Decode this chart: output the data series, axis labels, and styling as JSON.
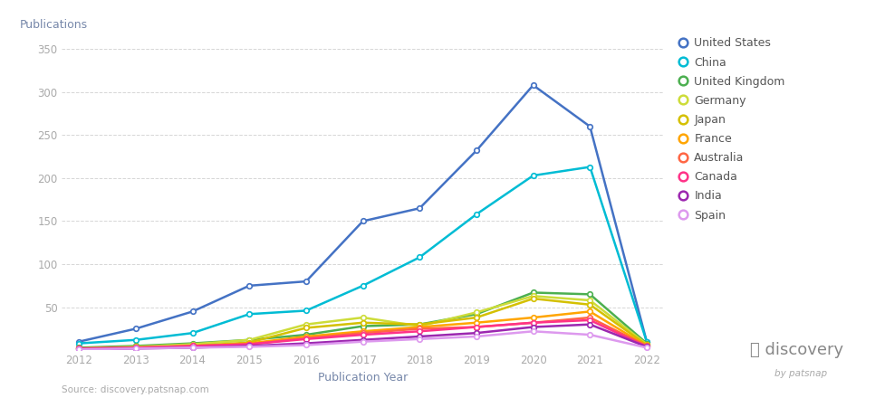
{
  "years": [
    2012,
    2013,
    2014,
    2015,
    2016,
    2017,
    2018,
    2019,
    2020,
    2021,
    2022
  ],
  "series": {
    "United States": {
      "values": [
        10,
        25,
        45,
        75,
        80,
        150,
        165,
        232,
        308,
        260,
        10
      ],
      "color": "#4472C4"
    },
    "China": {
      "values": [
        8,
        12,
        20,
        42,
        46,
        75,
        108,
        158,
        203,
        213,
        10
      ],
      "color": "#00BCD4"
    },
    "United Kingdom": {
      "values": [
        3,
        5,
        8,
        12,
        18,
        28,
        30,
        42,
        67,
        65,
        8
      ],
      "color": "#4CAF50"
    },
    "Germany": {
      "values": [
        2,
        4,
        7,
        12,
        30,
        38,
        28,
        44,
        63,
        58,
        7
      ],
      "color": "#CDDC39"
    },
    "Japan": {
      "values": [
        2,
        3,
        5,
        9,
        26,
        32,
        30,
        38,
        60,
        53,
        6
      ],
      "color": "#D4C000"
    },
    "France": {
      "values": [
        2,
        3,
        5,
        8,
        16,
        22,
        27,
        32,
        38,
        45,
        5
      ],
      "color": "#FFA500"
    },
    "Australia": {
      "values": [
        2,
        3,
        5,
        7,
        14,
        20,
        25,
        27,
        32,
        38,
        5
      ],
      "color": "#FF6644"
    },
    "Canada": {
      "values": [
        2,
        3,
        5,
        7,
        13,
        18,
        22,
        27,
        32,
        35,
        4
      ],
      "color": "#FF3388"
    },
    "India": {
      "values": [
        1,
        2,
        3,
        5,
        8,
        12,
        16,
        20,
        27,
        30,
        4
      ],
      "color": "#9C27B0"
    },
    "Spain": {
      "values": [
        1,
        2,
        3,
        4,
        6,
        10,
        13,
        16,
        22,
        18,
        3
      ],
      "color": "#DD99EE"
    }
  },
  "ylabel": "Publications",
  "xlabel": "Publication Year",
  "ylim": [
    0,
    370
  ],
  "yticks": [
    50,
    100,
    150,
    200,
    250,
    300,
    350
  ],
  "source_text": "Source: discovery.patsnap.com",
  "background_color": "#ffffff",
  "grid_color": "#cccccc",
  "tick_color": "#aaaaaa",
  "label_color": "#7788aa"
}
